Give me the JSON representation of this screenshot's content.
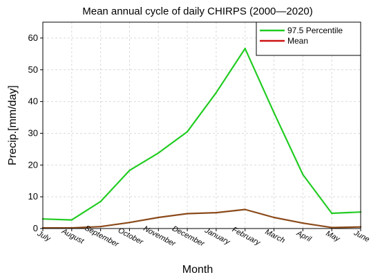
{
  "chart_data": {
    "type": "line",
    "title": "Mean annual cycle of daily CHIRPS (2000—2020)",
    "xlabel": "Month",
    "ylabel": "Precip.[mm/day]",
    "categories": [
      "July",
      "August",
      "September",
      "October",
      "November",
      "December",
      "January",
      "February",
      "March",
      "April",
      "May",
      "June"
    ],
    "ylim": [
      0,
      65
    ],
    "yticks": [
      0,
      10,
      20,
      30,
      40,
      50,
      60
    ],
    "grid": true,
    "legend": "top-right",
    "series": [
      {
        "name": "97.5 Percentile",
        "color": "#22cc22",
        "values": [
          3.0,
          2.7,
          8.5,
          18.3,
          23.8,
          30.5,
          42.8,
          56.7,
          36.5,
          17.0,
          4.8,
          5.2
        ]
      },
      {
        "name": "Mean",
        "color": "#cc1111",
        "values": [
          0.2,
          0.2,
          0.6,
          1.9,
          3.5,
          4.7,
          5.0,
          6.0,
          3.5,
          1.7,
          0.3,
          0.5
        ]
      }
    ],
    "series_display_colors": [
      "#22cc22",
      "#8b4a1a"
    ]
  }
}
